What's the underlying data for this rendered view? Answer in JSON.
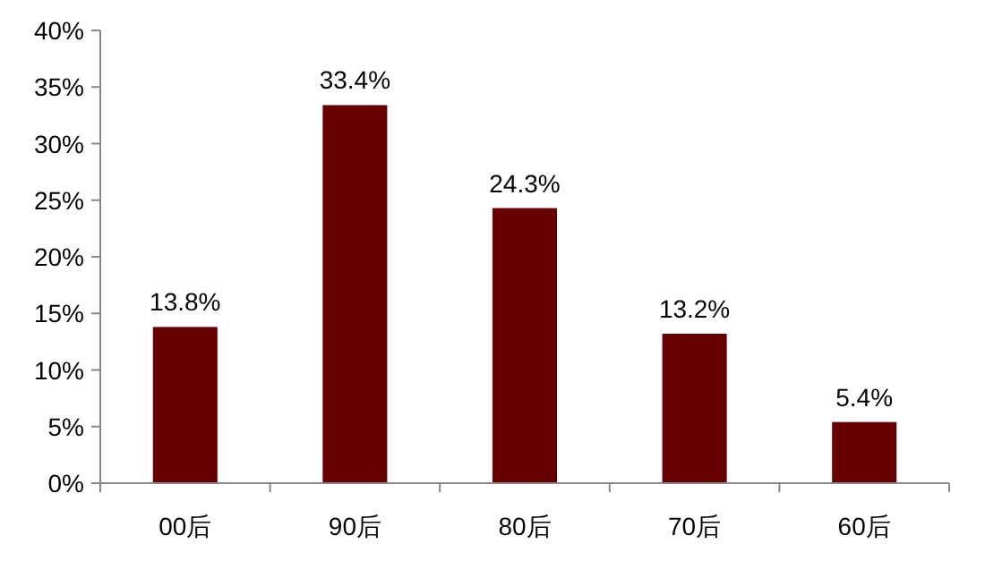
{
  "chart_data": {
    "type": "bar",
    "categories": [
      "00后",
      "90后",
      "80后",
      "70后",
      "60后"
    ],
    "values": [
      13.8,
      33.4,
      24.3,
      13.2,
      5.4
    ],
    "value_labels": [
      "13.8%",
      "33.4%",
      "24.3%",
      "13.2%",
      "5.4%"
    ],
    "color": "#660000",
    "ylim": [
      0,
      40
    ],
    "yticks": [
      {
        "value": 0,
        "label": "0%"
      },
      {
        "value": 5,
        "label": "5%"
      },
      {
        "value": 10,
        "label": "10%"
      },
      {
        "value": 15,
        "label": "15%"
      },
      {
        "value": 20,
        "label": "20%"
      },
      {
        "value": 25,
        "label": "25%"
      },
      {
        "value": 30,
        "label": "30%"
      },
      {
        "value": 35,
        "label": "35%"
      },
      {
        "value": 40,
        "label": "40%"
      }
    ],
    "grid": false
  }
}
